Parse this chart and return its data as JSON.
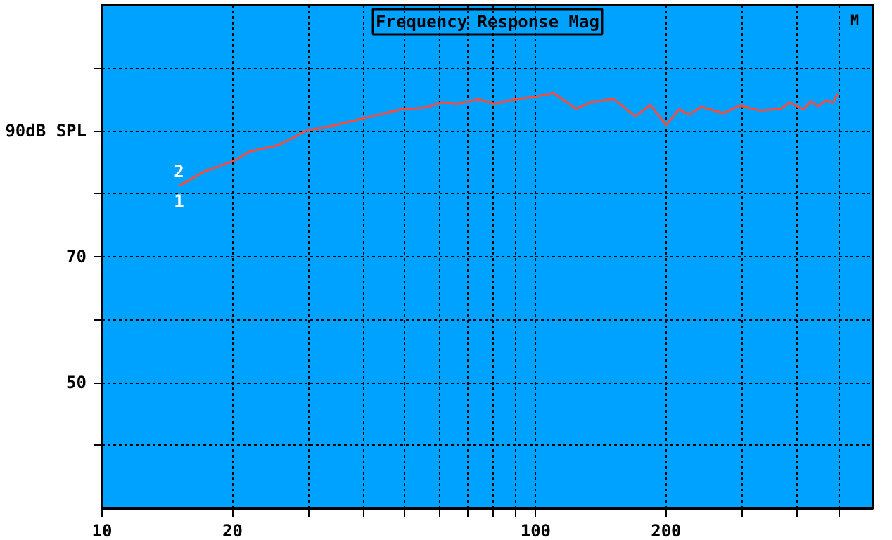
{
  "chart_data": {
    "type": "line",
    "title": "Frequency Response Mag",
    "annotations": [
      {
        "text": "2",
        "x": 15.1,
        "y": 81.3
      },
      {
        "text": "1",
        "x": 15.1,
        "y": 81.3
      },
      "M"
    ],
    "log": "x",
    "grid": true,
    "line_style": "solid",
    "marker": "none",
    "xlim": [
      10,
      600
    ],
    "ylim": [
      30,
      110
    ],
    "xticks": [
      10,
      20,
      {
        "value": 30,
        "label": null
      },
      {
        "value": 40,
        "label": null
      },
      {
        "value": 50,
        "label": null
      },
      {
        "value": 60,
        "label": null
      },
      {
        "value": 70,
        "label": null
      },
      {
        "value": 80,
        "label": null
      },
      {
        "value": 90,
        "label": null
      },
      100,
      200,
      {
        "value": 300,
        "label": null
      },
      {
        "value": 400,
        "label": null
      },
      {
        "value": 500,
        "label": null
      }
    ],
    "yticks": [
      {
        "value": 40,
        "label": null
      },
      50,
      {
        "value": 60,
        "label": null
      },
      70,
      {
        "value": 80,
        "label": null
      },
      {
        "value": 90,
        "label": "90dB SPL"
      },
      {
        "value": 100,
        "label": null
      }
    ],
    "x": [
      15.1,
      17.2,
      20.1,
      21.9,
      25.5,
      29.6,
      34.5,
      40.2,
      48.9,
      55.7,
      60.7,
      66.2,
      73.8,
      80.5,
      89.8,
      100,
      110,
      124,
      134,
      151,
      170,
      184,
      200,
      214,
      226,
      241,
      271,
      296,
      330,
      368,
      385,
      415,
      431,
      448,
      467,
      486,
      497
    ],
    "series": [
      {
        "color": "#ff4a3a",
        "values": [
          81.3,
          83.5,
          85.2,
          86.7,
          87.7,
          90.0,
          90.9,
          92.0,
          93.4,
          93.7,
          94.5,
          94.3,
          95.0,
          94.3,
          95.0,
          95.4,
          96.0,
          93.5,
          94.5,
          95.1,
          92.3,
          94.1,
          90.9,
          93.4,
          92.6,
          93.8,
          92.8,
          94.0,
          93.2,
          93.5,
          94.5,
          93.4,
          94.7,
          93.9,
          94.8,
          94.5,
          95.9
        ]
      }
    ]
  }
}
